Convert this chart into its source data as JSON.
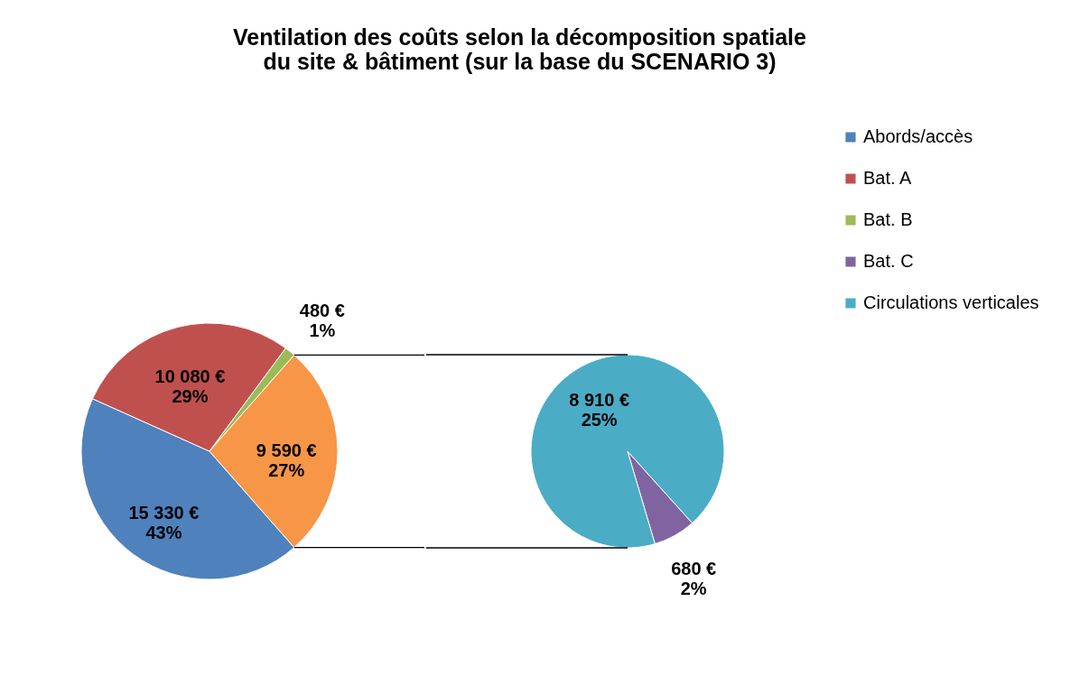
{
  "chart_data": [
    {
      "type": "pie",
      "title": "Ventilation des coûts selon la décomposition spatiale\ndu site & bâtiment (sur la base du SCENARIO 3)",
      "categories": [
        "Abords/accès",
        "Bat. A",
        "Bat. B",
        null
      ],
      "values": [
        15330,
        10080,
        480,
        9590
      ],
      "colors": [
        "#4f81bd",
        "#c0504d",
        "#9bbb59",
        "#f79646"
      ],
      "value_labels": [
        "15 330 €\n43%",
        "10 080 €\n29%",
        "480 €\n1%",
        "9 590 €\n27%"
      ],
      "legend": "right"
    },
    {
      "type": "pie",
      "categories": [
        "Bat. C",
        "Circulations verticales"
      ],
      "values": [
        680,
        8910
      ],
      "colors": [
        "#8064a2",
        "#4bacc6"
      ],
      "value_labels": [
        "680 €\n2%",
        "8 910 €\n25%"
      ],
      "legend": "right"
    }
  ]
}
